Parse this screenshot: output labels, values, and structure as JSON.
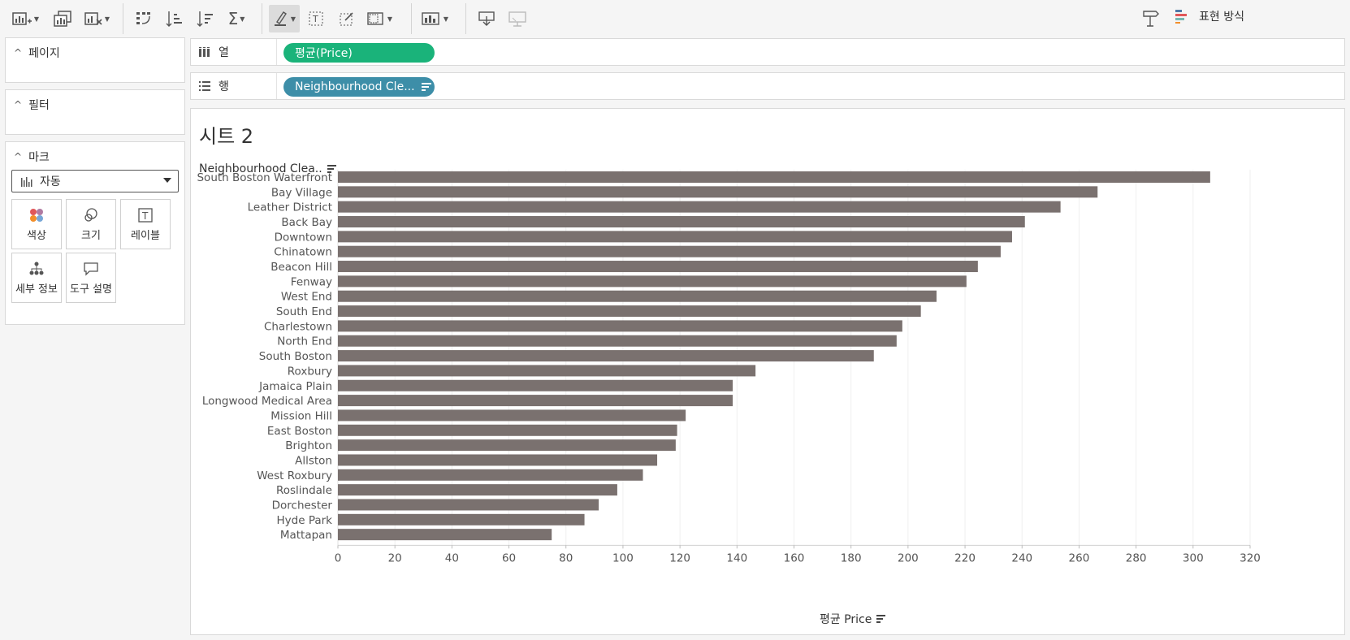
{
  "toolbar": {
    "buttons": [
      {
        "icon": "new-worksheet-icon"
      },
      {
        "icon": "duplicate-sheet-icon"
      },
      {
        "icon": "clear-sheet-icon"
      },
      {
        "icon": "swap-rows-columns-icon"
      },
      {
        "icon": "sort-ascending-icon"
      },
      {
        "icon": "sort-descending-icon"
      },
      {
        "icon": "totals-sigma-icon"
      },
      {
        "icon": "highlight-icon"
      },
      {
        "icon": "show-labels-icon"
      },
      {
        "icon": "annotation-icon"
      },
      {
        "icon": "fit-icon"
      },
      {
        "icon": "chart-type-icon"
      },
      {
        "icon": "download-icon"
      },
      {
        "icon": "presentation-icon"
      }
    ],
    "right": {
      "signpost_icon": "signpost-icon",
      "show_me_label": "표현 방식"
    }
  },
  "sidebar": {
    "pages": {
      "title": "페이지"
    },
    "filters": {
      "title": "필터"
    },
    "marks": {
      "title": "마크",
      "mark_type": "자동",
      "buttons": [
        {
          "label": "색상",
          "icon": "color-icon"
        },
        {
          "label": "크기",
          "icon": "size-icon"
        },
        {
          "label": "레이블",
          "icon": "label-icon"
        },
        {
          "label": "세부 정보",
          "icon": "detail-icon"
        },
        {
          "label": "도구 설명",
          "icon": "tooltip-icon"
        }
      ]
    }
  },
  "shelves": {
    "columns": {
      "label": "열",
      "pill": "평균(Price)"
    },
    "rows": {
      "label": "행",
      "pill": "Neighbourhood Cle..."
    }
  },
  "sheet": {
    "title": "시트 2",
    "row_header": "Neighbourhood Clea..",
    "axis_title": "평균 Price"
  },
  "chart_data": {
    "type": "bar",
    "orientation": "horizontal",
    "categories": [
      "South Boston Waterfront",
      "Bay Village",
      "Leather District",
      "Back Bay",
      "Downtown",
      "Chinatown",
      "Beacon Hill",
      "Fenway",
      "West End",
      "South End",
      "Charlestown",
      "North End",
      "South Boston",
      "Roxbury",
      "Jamaica Plain",
      "Longwood Medical Area",
      "Mission Hill",
      "East Boston",
      "Brighton",
      "Allston",
      "West Roxbury",
      "Roslindale",
      "Dorchester",
      "Hyde Park",
      "Mattapan"
    ],
    "values": [
      306,
      266.5,
      253.5,
      241,
      236.5,
      232.5,
      224.5,
      220.5,
      210,
      204.5,
      198,
      196,
      188,
      146.5,
      138.5,
      138.5,
      122,
      119,
      118.5,
      112,
      107,
      98,
      91.5,
      86.5,
      75
    ],
    "xlabel": "평균 Price",
    "ylabel": "Neighbourhood Clea..",
    "xlim": [
      0,
      320
    ],
    "xticks": [
      0,
      20,
      40,
      60,
      80,
      100,
      120,
      140,
      160,
      180,
      200,
      220,
      240,
      260,
      280,
      300,
      320
    ],
    "bar_color": "#7a716f",
    "grid": true
  }
}
